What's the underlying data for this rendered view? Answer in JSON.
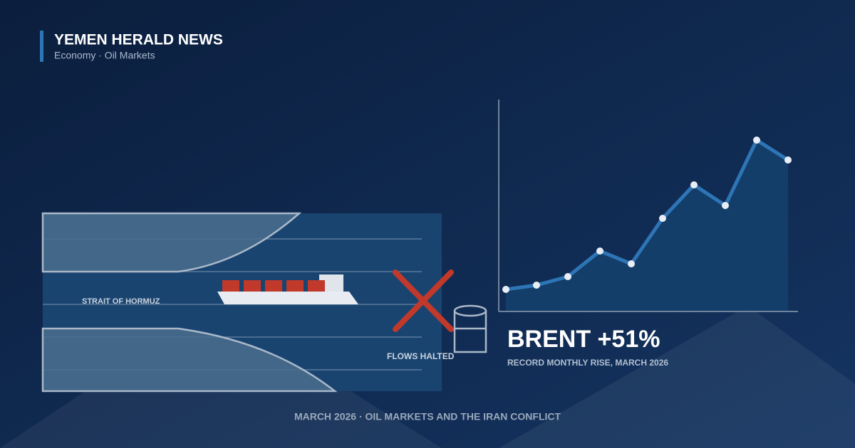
{
  "header": {
    "title": "YEMEN HERALD NEWS",
    "subtitle": "Economy · Oil Markets"
  },
  "illustration": {
    "strait_label": "STRAIT OF HORMUZ",
    "flow_label": "FLOWS HALTED"
  },
  "headline": {
    "title": "BRENT +51%",
    "caption": "RECORD MONTHLY RISE, MARCH 2026"
  },
  "footer": {
    "text": "MARCH 2026 · OIL MARKETS AND THE IRAN CONFLICT"
  }
}
